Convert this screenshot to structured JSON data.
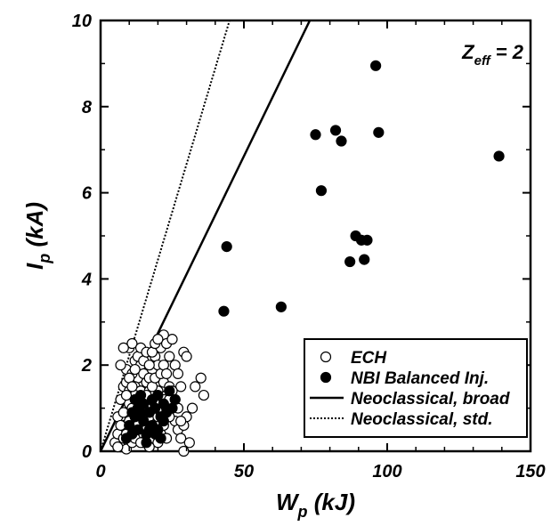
{
  "chart_data": {
    "type": "scatter",
    "title": "",
    "xlabel": "W",
    "xlabel_sub": "p",
    "xlabel_unit": " (kJ)",
    "ylabel": "I",
    "ylabel_sub": "p",
    "ylabel_unit": " (kA)",
    "xlim": [
      0,
      150
    ],
    "ylim": [
      0,
      10
    ],
    "x_ticks": [
      0,
      50,
      100,
      150
    ],
    "y_ticks": [
      0,
      2,
      4,
      6,
      8,
      10
    ],
    "grid": false,
    "legend_position": "bottom-right",
    "annotation": {
      "main": "Z",
      "sub": "eff",
      "rest": " = 2"
    },
    "series": [
      {
        "name": "ECH",
        "kind": "scatter-open",
        "points": [
          [
            5,
            0.2
          ],
          [
            6,
            0.4
          ],
          [
            7,
            0.1
          ],
          [
            8,
            0.3
          ],
          [
            9,
            0.05
          ],
          [
            10,
            0.5
          ],
          [
            11,
            0.2
          ],
          [
            12,
            0.7
          ],
          [
            13,
            0.4
          ],
          [
            14,
            0.9
          ],
          [
            15,
            0.6
          ],
          [
            16,
            1.0
          ],
          [
            17,
            0.8
          ],
          [
            18,
            1.2
          ],
          [
            19,
            1.0
          ],
          [
            20,
            1.4
          ],
          [
            21,
            1.1
          ],
          [
            22,
            1.6
          ],
          [
            23,
            1.3
          ],
          [
            24,
            1.5
          ],
          [
            6,
            0.8
          ],
          [
            7,
            1.2
          ],
          [
            8,
            1.5
          ],
          [
            9,
            1.9
          ],
          [
            10,
            2.4
          ],
          [
            11,
            2.5
          ],
          [
            12,
            2.1
          ],
          [
            13,
            1.7
          ],
          [
            14,
            2.0
          ],
          [
            7,
            2.0
          ],
          [
            8,
            2.4
          ],
          [
            9,
            1.6
          ],
          [
            10,
            1.4
          ],
          [
            11,
            1.8
          ],
          [
            12,
            1.5
          ],
          [
            13,
            1.2
          ],
          [
            14,
            1.4
          ],
          [
            15,
            1.8
          ],
          [
            16,
            1.6
          ],
          [
            17,
            1.4
          ],
          [
            18,
            1.9
          ],
          [
            19,
            2.2
          ],
          [
            20,
            2.0
          ],
          [
            21,
            2.4
          ],
          [
            22,
            2.7
          ],
          [
            23,
            2.5
          ],
          [
            24,
            2.2
          ],
          [
            25,
            2.6
          ],
          [
            26,
            2.0
          ],
          [
            27,
            1.8
          ],
          [
            28,
            1.5
          ],
          [
            29,
            2.3
          ],
          [
            30,
            2.2
          ],
          [
            32,
            1.0
          ],
          [
            33,
            1.5
          ],
          [
            35,
            1.7
          ],
          [
            36,
            1.3
          ],
          [
            25,
            1.0
          ],
          [
            26,
            0.7
          ],
          [
            27,
            0.5
          ],
          [
            28,
            0.3
          ],
          [
            29,
            0.6
          ],
          [
            30,
            0.8
          ],
          [
            31,
            0.2
          ],
          [
            18,
            0.3
          ],
          [
            19,
            0.5
          ],
          [
            20,
            0.2
          ],
          [
            21,
            0.4
          ],
          [
            22,
            0.6
          ],
          [
            23,
            0.3
          ],
          [
            24,
            0.8
          ],
          [
            15,
            0.2
          ],
          [
            16,
            0.4
          ],
          [
            17,
            0.1
          ],
          [
            9,
            0.9
          ],
          [
            10,
            1.1
          ],
          [
            11,
            0.8
          ],
          [
            12,
            1.3
          ],
          [
            13,
            1.0
          ],
          [
            14,
            1.2
          ],
          [
            8,
            0.6
          ],
          [
            9,
            0.4
          ],
          [
            10,
            0.7
          ],
          [
            11,
            1.0
          ],
          [
            12,
            0.3
          ],
          [
            13,
            0.6
          ],
          [
            14,
            0.2
          ],
          [
            15,
            1.0
          ],
          [
            16,
            1.3
          ],
          [
            17,
            1.7
          ],
          [
            18,
            1.5
          ],
          [
            19,
            1.7
          ],
          [
            20,
            0.8
          ],
          [
            21,
            0.9
          ],
          [
            22,
            1.2
          ],
          [
            23,
            1.0
          ],
          [
            24,
            1.2
          ],
          [
            25,
            1.4
          ],
          [
            26,
            1.2
          ],
          [
            27,
            1.0
          ],
          [
            28,
            0.7
          ],
          [
            29,
            0.0
          ],
          [
            6,
            0.1
          ],
          [
            7,
            0.6
          ],
          [
            8,
            0.9
          ],
          [
            9,
            1.3
          ],
          [
            10,
            1.7
          ],
          [
            11,
            1.5
          ],
          [
            12,
            1.9
          ],
          [
            13,
            2.2
          ],
          [
            14,
            2.4
          ],
          [
            15,
            2.1
          ],
          [
            16,
            2.3
          ],
          [
            17,
            2.0
          ],
          [
            18,
            2.3
          ],
          [
            19,
            2.5
          ],
          [
            20,
            2.6
          ],
          [
            21,
            1.8
          ],
          [
            22,
            2.0
          ],
          [
            23,
            1.8
          ]
        ]
      },
      {
        "name": "NBI Balanced Inj.",
        "kind": "scatter-filled",
        "points": [
          [
            43,
            3.25
          ],
          [
            44,
            4.75
          ],
          [
            63,
            3.35
          ],
          [
            75,
            7.35
          ],
          [
            77,
            6.05
          ],
          [
            82,
            7.45
          ],
          [
            84,
            7.2
          ],
          [
            87,
            4.4
          ],
          [
            89,
            5.0
          ],
          [
            91,
            4.9
          ],
          [
            92,
            4.45
          ],
          [
            93,
            4.9
          ],
          [
            96,
            8.95
          ],
          [
            97,
            7.4
          ],
          [
            139,
            6.85
          ],
          [
            9,
            0.3
          ],
          [
            10,
            0.6
          ],
          [
            11,
            0.4
          ],
          [
            12,
            0.8
          ],
          [
            13,
            0.5
          ],
          [
            14,
            0.9
          ],
          [
            15,
            0.7
          ],
          [
            16,
            0.4
          ],
          [
            17,
            0.9
          ],
          [
            18,
            0.6
          ],
          [
            19,
            1.0
          ],
          [
            20,
            1.3
          ],
          [
            21,
            0.8
          ],
          [
            22,
            1.1
          ],
          [
            23,
            0.9
          ],
          [
            24,
            1.4
          ],
          [
            25,
            1.0
          ],
          [
            26,
            1.2
          ],
          [
            11,
            0.9
          ],
          [
            12,
            1.2
          ],
          [
            13,
            1.0
          ],
          [
            14,
            1.3
          ],
          [
            15,
            1.1
          ],
          [
            16,
            0.2
          ],
          [
            17,
            0.5
          ],
          [
            18,
            1.2
          ],
          [
            19,
            0.4
          ],
          [
            20,
            0.5
          ],
          [
            21,
            0.3
          ],
          [
            22,
            0.7
          ]
        ]
      },
      {
        "name": "Neoclassical, broad",
        "kind": "line-solid",
        "points": [
          [
            0,
            0
          ],
          [
            73,
            10
          ]
        ]
      },
      {
        "name": "Neoclassical, std.",
        "kind": "line-dotted",
        "points": [
          [
            0,
            0
          ],
          [
            45,
            10
          ]
        ]
      }
    ]
  }
}
